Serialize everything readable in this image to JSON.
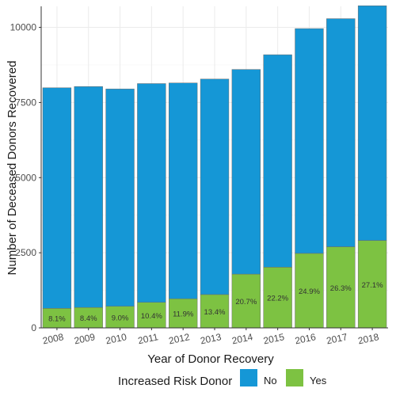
{
  "chart_data": {
    "type": "bar",
    "stacked": true,
    "title": "",
    "xlabel": "Year of Donor Recovery",
    "ylabel": "Number of Deceased Donors Recovered",
    "categories": [
      "2008",
      "2009",
      "2010",
      "2011",
      "2012",
      "2013",
      "2014",
      "2015",
      "2016",
      "2017",
      "2018"
    ],
    "ylim": [
      0,
      10700
    ],
    "yticks": [
      0,
      2500,
      5000,
      7500,
      10000
    ],
    "series": [
      {
        "name": "No",
        "color": "#1597d6",
        "values": [
          7340,
          7350,
          7230,
          7280,
          7180,
          7170,
          6810,
          7070,
          7480,
          7590,
          7810
        ]
      },
      {
        "name": "Yes",
        "color": "#7dc242",
        "values": [
          650,
          680,
          720,
          850,
          970,
          1110,
          1790,
          2020,
          2480,
          2700,
          2910
        ]
      }
    ],
    "data_labels": [
      "8.1%",
      "8.4%",
      "9.0%",
      "10.4%",
      "11.9%",
      "13.4%",
      "20.7%",
      "22.2%",
      "24.9%",
      "26.3%",
      "27.1%"
    ],
    "grid": true,
    "legend": {
      "title": "Increased Risk Donor",
      "position": "bottom",
      "entries": [
        "No",
        "Yes"
      ]
    }
  }
}
